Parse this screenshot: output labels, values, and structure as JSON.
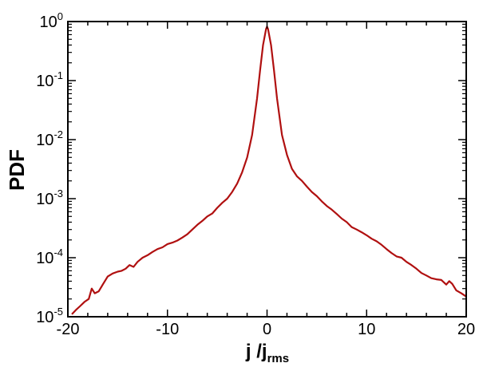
{
  "chart_data": {
    "type": "line",
    "title": "",
    "xlabel": {
      "base": "j /j",
      "subscript": "rms"
    },
    "ylabel": "PDF",
    "xlim": [
      -20,
      20
    ],
    "ylim": [
      1e-05,
      1
    ],
    "yscale": "log",
    "grid": false,
    "legend": "none",
    "x_ticks": [
      "-20",
      "-10",
      "0",
      "10",
      "20"
    ],
    "y_ticks": [
      {
        "base": "10",
        "exp": "-5"
      },
      {
        "base": "10",
        "exp": "-4"
      },
      {
        "base": "10",
        "exp": "-3"
      },
      {
        "base": "10",
        "exp": "-2"
      },
      {
        "base": "10",
        "exp": "-1"
      },
      {
        "base": "10",
        "exp": "0"
      }
    ],
    "series": [
      {
        "color": "#b01010",
        "points": [
          [
            -19.6,
            1.1e-05
          ],
          [
            -19.2,
            1.3e-05
          ],
          [
            -18.8,
            1.5e-05
          ],
          [
            -18.3,
            1.8e-05
          ],
          [
            -17.9,
            2e-05
          ],
          [
            -17.6,
            3e-05
          ],
          [
            -17.3,
            2.5e-05
          ],
          [
            -16.9,
            2.7e-05
          ],
          [
            -16.5,
            3.5e-05
          ],
          [
            -16.0,
            4.8e-05
          ],
          [
            -15.5,
            5.4e-05
          ],
          [
            -15.0,
            5.8e-05
          ],
          [
            -14.6,
            6e-05
          ],
          [
            -14.2,
            6.5e-05
          ],
          [
            -13.8,
            7.5e-05
          ],
          [
            -13.4,
            7e-05
          ],
          [
            -13.0,
            8.5e-05
          ],
          [
            -12.5,
            0.0001
          ],
          [
            -12.0,
            0.00011
          ],
          [
            -11.5,
            0.000125
          ],
          [
            -11.0,
            0.00014
          ],
          [
            -10.5,
            0.00015
          ],
          [
            -10.0,
            0.00017
          ],
          [
            -9.5,
            0.00018
          ],
          [
            -9.0,
            0.000195
          ],
          [
            -8.5,
            0.00022
          ],
          [
            -8.0,
            0.00025
          ],
          [
            -7.5,
            0.0003
          ],
          [
            -7.0,
            0.00036
          ],
          [
            -6.5,
            0.00042
          ],
          [
            -6.0,
            0.0005
          ],
          [
            -5.5,
            0.00056
          ],
          [
            -5.0,
            0.0007
          ],
          [
            -4.5,
            0.00085
          ],
          [
            -4.0,
            0.001
          ],
          [
            -3.5,
            0.0013
          ],
          [
            -3.0,
            0.0018
          ],
          [
            -2.5,
            0.0028
          ],
          [
            -2.0,
            0.005
          ],
          [
            -1.5,
            0.012
          ],
          [
            -1.0,
            0.05
          ],
          [
            -0.7,
            0.15
          ],
          [
            -0.4,
            0.4
          ],
          [
            -0.1,
            0.75
          ],
          [
            0.0,
            0.82
          ],
          [
            0.1,
            0.75
          ],
          [
            0.4,
            0.4
          ],
          [
            0.7,
            0.15
          ],
          [
            1.0,
            0.05
          ],
          [
            1.5,
            0.012
          ],
          [
            2.0,
            0.0055
          ],
          [
            2.5,
            0.0032
          ],
          [
            3.0,
            0.0024
          ],
          [
            3.5,
            0.002
          ],
          [
            4.0,
            0.0016
          ],
          [
            4.5,
            0.0013
          ],
          [
            5.0,
            0.0011
          ],
          [
            5.5,
            0.0009
          ],
          [
            6.0,
            0.00075
          ],
          [
            6.5,
            0.00065
          ],
          [
            7.0,
            0.00055
          ],
          [
            7.5,
            0.00046
          ],
          [
            8.0,
            0.0004
          ],
          [
            8.5,
            0.00033
          ],
          [
            9.0,
            0.0003
          ],
          [
            9.5,
            0.00027
          ],
          [
            10.0,
            0.00024
          ],
          [
            10.5,
            0.00021
          ],
          [
            11.0,
            0.00019
          ],
          [
            11.5,
            0.000165
          ],
          [
            12.0,
            0.00014
          ],
          [
            12.5,
            0.00012
          ],
          [
            13.0,
            0.000105
          ],
          [
            13.5,
            0.0001
          ],
          [
            14.0,
            8.5e-05
          ],
          [
            14.5,
            7.5e-05
          ],
          [
            15.0,
            6.5e-05
          ],
          [
            15.5,
            5.5e-05
          ],
          [
            16.0,
            5e-05
          ],
          [
            16.5,
            4.5e-05
          ],
          [
            17.0,
            4.3e-05
          ],
          [
            17.5,
            4.2e-05
          ],
          [
            18.0,
            3.5e-05
          ],
          [
            18.3,
            4e-05
          ],
          [
            18.6,
            3.6e-05
          ],
          [
            19.0,
            2.8e-05
          ],
          [
            19.5,
            2.5e-05
          ],
          [
            20.0,
            2.2e-05
          ]
        ]
      }
    ]
  }
}
